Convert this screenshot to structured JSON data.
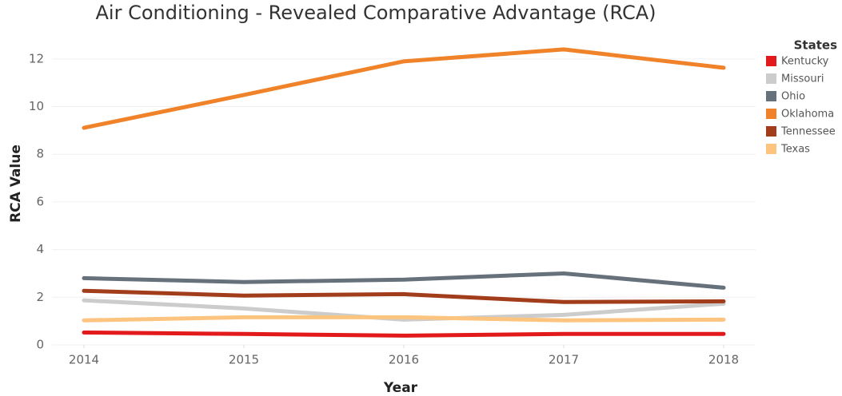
{
  "chart_data": {
    "type": "line",
    "title": "Air Conditioning - Revealed Comparative Advantage (RCA)",
    "x_label": "Year",
    "y_label": "RCA Value",
    "legend_title": "States",
    "x": [
      2014,
      2015,
      2016,
      2017,
      2018
    ],
    "xlim": [
      2013.8,
      2018.2
    ],
    "xticks": [
      2014,
      2015,
      2016,
      2017,
      2018
    ],
    "ylim": [
      0,
      13
    ],
    "yticks": [
      0,
      2,
      4,
      6,
      8,
      10,
      12
    ],
    "grid": true,
    "legend": "right",
    "series": [
      {
        "name": "Kentucky",
        "color": "#e31a1c",
        "values": [
          0.52,
          0.46,
          0.39,
          0.46,
          0.46
        ]
      },
      {
        "name": "Missouri",
        "color": "#cccccc",
        "values": [
          1.87,
          1.53,
          1.06,
          1.26,
          1.73
        ]
      },
      {
        "name": "Ohio",
        "color": "#66717b",
        "values": [
          2.8,
          2.64,
          2.74,
          3.0,
          2.4
        ]
      },
      {
        "name": "Oklahoma",
        "color": "#f0832a",
        "values": [
          9.11,
          10.49,
          11.9,
          12.4,
          11.63
        ]
      },
      {
        "name": "Tennessee",
        "color": "#a23d1c",
        "values": [
          2.27,
          2.07,
          2.13,
          1.8,
          1.83
        ]
      },
      {
        "name": "Texas",
        "color": "#fdc47f",
        "values": [
          1.03,
          1.16,
          1.16,
          1.03,
          1.06
        ]
      }
    ]
  }
}
